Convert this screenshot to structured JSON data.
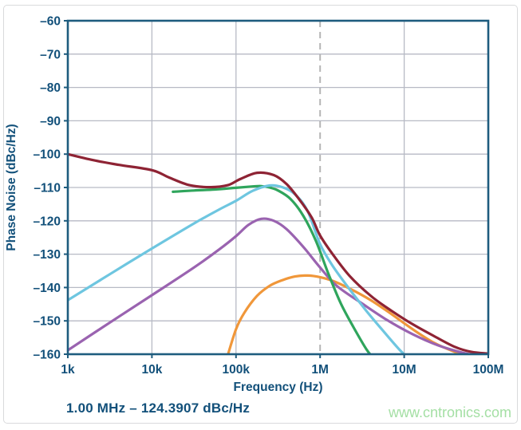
{
  "page": {
    "watermark": "www.cntronics.com",
    "watermark_color": "#a4dfa4"
  },
  "chart_data": {
    "type": "line",
    "title": "",
    "xlabel": "Frequency (Hz)",
    "ylabel": "Phase Noise (dBc/Hz)",
    "x_scale": "log",
    "xlim": [
      1000,
      100000000
    ],
    "ylim": [
      -160,
      -60
    ],
    "grid": true,
    "legend": "none",
    "x_ticks": [
      {
        "v": 1000,
        "label": "1k"
      },
      {
        "v": 10000,
        "label": "10k"
      },
      {
        "v": 100000,
        "label": "100k"
      },
      {
        "v": 1000000,
        "label": "1M"
      },
      {
        "v": 10000000,
        "label": "10M"
      },
      {
        "v": 100000000,
        "label": "100M"
      }
    ],
    "y_ticks": [
      {
        "v": -60,
        "label": "–60"
      },
      {
        "v": -70,
        "label": "–70"
      },
      {
        "v": -80,
        "label": "–80"
      },
      {
        "v": -90,
        "label": "–90"
      },
      {
        "v": -100,
        "label": "–100"
      },
      {
        "v": -110,
        "label": "–110"
      },
      {
        "v": -120,
        "label": "–120"
      },
      {
        "v": -130,
        "label": "–130"
      },
      {
        "v": -140,
        "label": "–140"
      },
      {
        "v": -150,
        "label": "–150"
      },
      {
        "v": -160,
        "label": "–160"
      }
    ],
    "marker": {
      "freq": 1000000,
      "style": "dashed-vertical-line",
      "label": "1.00 MHz – 124.3907 dBc/Hz",
      "value_dbc_hz": -124.3907
    },
    "style": {
      "frame_color": "#1e5c7e",
      "grid_color": "#b7bac5",
      "text_color": "#12507a",
      "marker_line_color": "#b5b5b5",
      "plot_bg": "#ffffff"
    },
    "series": [
      {
        "name": "orange",
        "color": "#f0973a",
        "points": [
          [
            79400,
            -160.5
          ],
          [
            100000,
            -152.5
          ],
          [
            126000,
            -147.5
          ],
          [
            178000,
            -142.5
          ],
          [
            251000,
            -139.5
          ],
          [
            355000,
            -137.8
          ],
          [
            501000,
            -136.7
          ],
          [
            708000,
            -136.4
          ],
          [
            1000000,
            -136.9
          ],
          [
            1410000,
            -138
          ],
          [
            2240000,
            -140.3
          ],
          [
            4000000,
            -143.8
          ],
          [
            7080000,
            -148
          ],
          [
            12600000,
            -152.5
          ],
          [
            22400000,
            -156.5
          ],
          [
            40000000,
            -159.3
          ],
          [
            56200000,
            -160.4
          ]
        ]
      },
      {
        "name": "purple",
        "color": "#9a63b0",
        "points": [
          [
            1000,
            -158.8
          ],
          [
            3160,
            -150.5
          ],
          [
            10000,
            -142.3
          ],
          [
            31600,
            -134
          ],
          [
            63000,
            -128.6
          ],
          [
            100000,
            -124.6
          ],
          [
            141000,
            -121.2
          ],
          [
            200000,
            -119.4
          ],
          [
            282000,
            -120
          ],
          [
            400000,
            -122.5
          ],
          [
            631000,
            -127.8
          ],
          [
            1000000,
            -134
          ],
          [
            1580000,
            -139.5
          ],
          [
            3160000,
            -144.8
          ],
          [
            6310000,
            -149.8
          ],
          [
            12600000,
            -154
          ],
          [
            25100000,
            -157.3
          ],
          [
            50100000,
            -159.6
          ],
          [
            70800000,
            -160.3
          ]
        ]
      },
      {
        "name": "green",
        "color": "#2fa55c",
        "points": [
          [
            17800,
            -111.3
          ],
          [
            31600,
            -110.9
          ],
          [
            56200,
            -110.6
          ],
          [
            100000,
            -110.1
          ],
          [
            158000,
            -109.7
          ],
          [
            200000,
            -109.6
          ],
          [
            251000,
            -110
          ],
          [
            316000,
            -110.9
          ],
          [
            447000,
            -113.5
          ],
          [
            631000,
            -118.5
          ],
          [
            891000,
            -126
          ],
          [
            1260000,
            -136
          ],
          [
            1780000,
            -145
          ],
          [
            2510000,
            -152
          ],
          [
            3550000,
            -158.5
          ],
          [
            4270000,
            -161
          ]
        ]
      },
      {
        "name": "cyan",
        "color": "#6ec6e0",
        "points": [
          [
            1000,
            -143.8
          ],
          [
            3160,
            -136
          ],
          [
            10000,
            -128.3
          ],
          [
            31600,
            -120.8
          ],
          [
            63000,
            -116.6
          ],
          [
            100000,
            -114
          ],
          [
            158000,
            -111
          ],
          [
            251000,
            -109.4
          ],
          [
            355000,
            -109.9
          ],
          [
            501000,
            -112
          ],
          [
            708000,
            -117
          ],
          [
            1000000,
            -127
          ],
          [
            1410000,
            -133.5
          ],
          [
            2240000,
            -140.5
          ],
          [
            3550000,
            -147
          ],
          [
            5620000,
            -153
          ],
          [
            8910000,
            -158.8
          ],
          [
            11200000,
            -161
          ]
        ]
      },
      {
        "name": "maroon",
        "color": "#8e2334",
        "points": [
          [
            1000,
            -100
          ],
          [
            2000,
            -101.8
          ],
          [
            4000,
            -103.2
          ],
          [
            10000,
            -104.8
          ],
          [
            16000,
            -107
          ],
          [
            28000,
            -109.3
          ],
          [
            50000,
            -109.9
          ],
          [
            80000,
            -109.3
          ],
          [
            112000,
            -107.5
          ],
          [
            178000,
            -105.6
          ],
          [
            282000,
            -106.3
          ],
          [
            400000,
            -109
          ],
          [
            562000,
            -113.5
          ],
          [
            794000,
            -119
          ],
          [
            1000000,
            -124.4
          ],
          [
            1410000,
            -130
          ],
          [
            2240000,
            -136.5
          ],
          [
            4000000,
            -142.5
          ],
          [
            7080000,
            -147
          ],
          [
            12600000,
            -151
          ],
          [
            22400000,
            -154.5
          ],
          [
            40000000,
            -157.8
          ],
          [
            63000000,
            -159.3
          ],
          [
            100000000,
            -159.8
          ]
        ]
      }
    ]
  }
}
